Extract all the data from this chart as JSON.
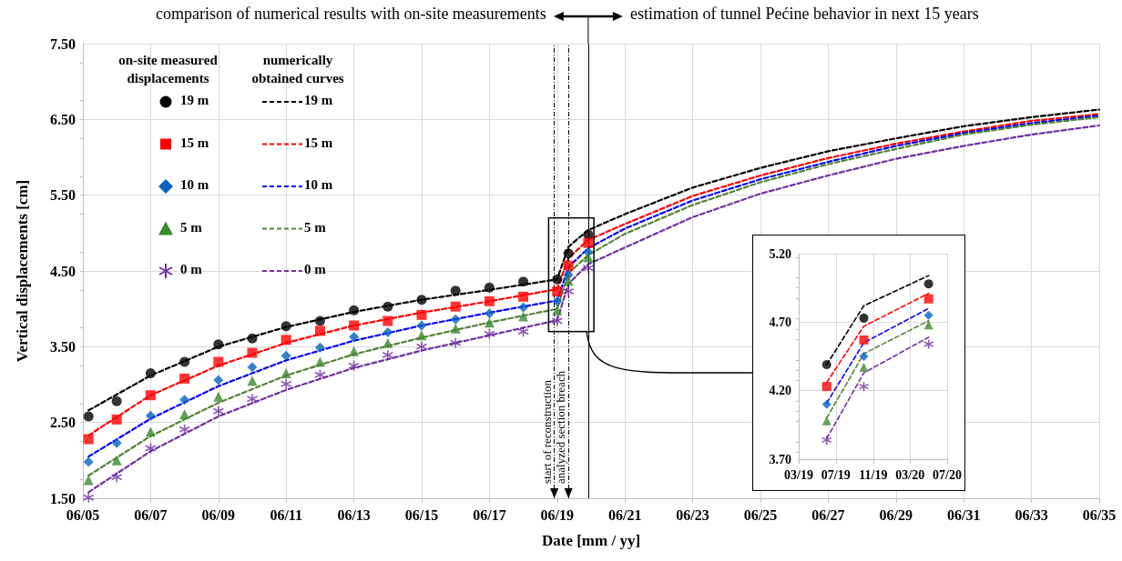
{
  "chart_data": [
    {
      "type": "line",
      "xlabel": "Date [mm / yy]",
      "ylabel": "Vertical displacements [cm]",
      "annotations": [
        "on-site measured displacements",
        "numerically obtained curves",
        "comparison of numerical results with on-site measurements",
        "estimation of tunnel Pećine behavior in next 15 years"
      ],
      "xlim": [
        "2005-06",
        "2035-06"
      ],
      "xticks": [
        {
          "value": "2005-06",
          "label": "06/05"
        },
        {
          "value": "2007-06",
          "label": "06/07"
        },
        {
          "value": "2009-06",
          "label": "06/09"
        },
        {
          "value": "2011-06",
          "label": "06/11"
        },
        {
          "value": "2013-06",
          "label": "06/13"
        },
        {
          "value": "2015-06",
          "label": "06/15"
        },
        {
          "value": "2017-06",
          "label": "06/17"
        },
        {
          "value": "2019-06",
          "label": "06/19"
        },
        {
          "value": "2021-06",
          "label": "06/21"
        },
        {
          "value": "2023-06",
          "label": "06/23"
        },
        {
          "value": "2025-06",
          "label": "06/25"
        },
        {
          "value": "2027-06",
          "label": "06/27"
        },
        {
          "value": "2029-06",
          "label": "06/29"
        },
        {
          "value": "2031-06",
          "label": "06/31"
        },
        {
          "value": "2033-06",
          "label": "06/33"
        },
        {
          "value": "2035-06",
          "label": "06/35"
        }
      ],
      "ylim": [
        1.5,
        7.5
      ],
      "yticks": [
        {
          "value": 1.5,
          "label": "1.50"
        },
        {
          "value": 2.5,
          "label": "2.50"
        },
        {
          "value": 3.5,
          "label": "3.50"
        },
        {
          "value": 4.5,
          "label": "4.50"
        },
        {
          "value": 5.5,
          "label": "5.50"
        },
        {
          "value": 6.5,
          "label": "6.50"
        },
        {
          "value": 7.5,
          "label": "7.50"
        }
      ],
      "grid": true,
      "legend": "top left",
      "ref_lines": [
        {
          "axis": "x",
          "value": "2019-05",
          "label": "start of reconstruction",
          "color": "#000000",
          "line_style": "dashed"
        },
        {
          "axis": "x",
          "value": "2019-10",
          "label": "analyzed section breach",
          "color": "#000000",
          "line_style": "dashed"
        },
        {
          "axis": "x",
          "value": "2020-05",
          "label": null,
          "color": "#000000",
          "line_style": "solid"
        }
      ],
      "series": [
        {
          "name": "19 m",
          "type": "scatter",
          "marker": "circle",
          "color": "#000000",
          "x": [
            "2005-08",
            "2006-06",
            "2007-06",
            "2008-06",
            "2009-06",
            "2010-06",
            "2011-06",
            "2012-06",
            "2013-06",
            "2014-06",
            "2015-06",
            "2016-06",
            "2017-06",
            "2018-06",
            "2019-06",
            "2019-10",
            "2020-05"
          ],
          "values": [
            2.58,
            2.78,
            3.15,
            3.3,
            3.53,
            3.61,
            3.77,
            3.84,
            3.98,
            4.03,
            4.12,
            4.24,
            4.28,
            4.36,
            4.39,
            4.73,
            4.98
          ]
        },
        {
          "name": "15 m",
          "type": "scatter",
          "marker": "square",
          "color": "#ff0000",
          "x": [
            "2005-08",
            "2006-06",
            "2007-06",
            "2008-06",
            "2009-06",
            "2010-06",
            "2011-06",
            "2012-06",
            "2013-06",
            "2014-06",
            "2015-06",
            "2016-06",
            "2017-06",
            "2018-06",
            "2019-06",
            "2019-10",
            "2020-05"
          ],
          "values": [
            2.28,
            2.54,
            2.86,
            3.08,
            3.3,
            3.42,
            3.59,
            3.71,
            3.78,
            3.84,
            3.92,
            4.03,
            4.1,
            4.16,
            4.23,
            4.57,
            4.87
          ]
        },
        {
          "name": "10 m",
          "type": "scatter",
          "marker": "diamond",
          "color": "#0563c1",
          "x": [
            "2005-08",
            "2006-06",
            "2007-06",
            "2008-06",
            "2009-06",
            "2010-06",
            "2011-06",
            "2012-06",
            "2013-06",
            "2014-06",
            "2015-06",
            "2016-06",
            "2017-06",
            "2018-06",
            "2019-06",
            "2019-10",
            "2020-05"
          ],
          "values": [
            1.98,
            2.23,
            2.59,
            2.8,
            3.06,
            3.23,
            3.38,
            3.49,
            3.63,
            3.69,
            3.78,
            3.86,
            3.94,
            4.02,
            4.1,
            4.45,
            4.75
          ]
        },
        {
          "name": "5 m",
          "type": "scatter",
          "marker": "triangle",
          "color": "#3a8a2e",
          "x": [
            "2005-08",
            "2006-06",
            "2007-06",
            "2008-06",
            "2009-06",
            "2010-06",
            "2011-06",
            "2012-06",
            "2013-06",
            "2014-06",
            "2015-06",
            "2016-06",
            "2017-06",
            "2018-06",
            "2019-06",
            "2019-10",
            "2020-05"
          ],
          "values": [
            1.74,
            2.0,
            2.38,
            2.61,
            2.84,
            3.05,
            3.15,
            3.3,
            3.44,
            3.55,
            3.65,
            3.74,
            3.82,
            3.9,
            3.98,
            4.37,
            4.68
          ]
        },
        {
          "name": "0 m",
          "type": "scatter",
          "marker": "cross",
          "color": "#7030a0",
          "x": [
            "2005-08",
            "2006-06",
            "2007-06",
            "2008-06",
            "2009-06",
            "2010-06",
            "2011-06",
            "2012-06",
            "2013-06",
            "2014-06",
            "2015-06",
            "2016-06",
            "2017-06",
            "2018-06",
            "2019-06",
            "2019-10",
            "2020-05"
          ],
          "values": [
            1.51,
            1.78,
            2.16,
            2.41,
            2.65,
            2.81,
            3.01,
            3.13,
            3.25,
            3.39,
            3.5,
            3.55,
            3.67,
            3.7,
            3.84,
            4.23,
            4.54
          ]
        },
        {
          "name": "19 m",
          "type": "line",
          "marker": "none",
          "line_style": "dashed",
          "color": "#000000",
          "x": [
            "2005-08",
            "2007-06",
            "2009-06",
            "2011-06",
            "2013-06",
            "2015-06",
            "2017-06",
            "2019-06",
            "2019-10",
            "2020-05",
            "2021-06",
            "2023-06",
            "2025-06",
            "2027-06",
            "2029-06",
            "2031-06",
            "2033-06",
            "2035-06"
          ],
          "values": [
            2.66,
            3.12,
            3.5,
            3.76,
            3.96,
            4.12,
            4.25,
            4.39,
            4.82,
            5.04,
            5.25,
            5.6,
            5.86,
            6.08,
            6.25,
            6.41,
            6.53,
            6.63
          ]
        },
        {
          "name": "15 m",
          "type": "line",
          "marker": "none",
          "line_style": "dashed",
          "color": "#ff0000",
          "x": [
            "2005-08",
            "2007-06",
            "2009-06",
            "2011-06",
            "2013-06",
            "2015-06",
            "2017-06",
            "2019-06",
            "2019-10",
            "2020-05",
            "2021-06",
            "2023-06",
            "2025-06",
            "2027-06",
            "2029-06",
            "2031-06",
            "2033-06",
            "2035-06"
          ],
          "values": [
            2.33,
            2.86,
            3.25,
            3.55,
            3.78,
            3.95,
            4.1,
            4.26,
            4.67,
            4.91,
            5.12,
            5.49,
            5.76,
            5.99,
            6.18,
            6.34,
            6.48,
            6.57
          ]
        },
        {
          "name": "10 m",
          "type": "line",
          "marker": "none",
          "line_style": "dashed",
          "color": "#0000ff",
          "x": [
            "2005-08",
            "2007-06",
            "2009-06",
            "2011-06",
            "2013-06",
            "2015-06",
            "2017-06",
            "2019-06",
            "2019-10",
            "2020-05",
            "2021-06",
            "2023-06",
            "2025-06",
            "2027-06",
            "2029-06",
            "2031-06",
            "2033-06",
            "2035-06"
          ],
          "values": [
            2.05,
            2.55,
            2.98,
            3.32,
            3.58,
            3.78,
            3.95,
            4.11,
            4.55,
            4.8,
            5.06,
            5.43,
            5.71,
            5.94,
            6.15,
            6.32,
            6.45,
            6.55
          ]
        },
        {
          "name": "5 m",
          "type": "line",
          "marker": "none",
          "line_style": "dashed",
          "color": "#548235",
          "x": [
            "2005-08",
            "2007-06",
            "2009-06",
            "2011-06",
            "2013-06",
            "2015-06",
            "2017-06",
            "2019-06",
            "2019-10",
            "2020-05",
            "2021-06",
            "2023-06",
            "2025-06",
            "2027-06",
            "2029-06",
            "2031-06",
            "2033-06",
            "2035-06"
          ],
          "values": [
            1.8,
            2.32,
            2.76,
            3.12,
            3.4,
            3.62,
            3.82,
            4.0,
            4.47,
            4.71,
            4.99,
            5.37,
            5.67,
            5.91,
            6.11,
            6.3,
            6.43,
            6.53
          ]
        },
        {
          "name": "0 m",
          "type": "line",
          "marker": "none",
          "line_style": "dashed",
          "color": "#7030a0",
          "x": [
            "2005-08",
            "2007-06",
            "2009-06",
            "2011-06",
            "2013-06",
            "2015-06",
            "2017-06",
            "2019-06",
            "2019-10",
            "2020-05",
            "2021-06",
            "2023-06",
            "2025-06",
            "2027-06",
            "2029-06",
            "2031-06",
            "2033-06",
            "2035-06"
          ],
          "values": [
            1.58,
            2.12,
            2.58,
            2.93,
            3.22,
            3.45,
            3.65,
            3.85,
            4.33,
            4.59,
            4.81,
            5.21,
            5.52,
            5.76,
            5.98,
            6.15,
            6.3,
            6.42
          ]
        }
      ]
    },
    {
      "type": "line",
      "xlim": [
        "2019-03",
        "2020-07"
      ],
      "xticks": [
        {
          "value": "2019-03",
          "label": "03/19"
        },
        {
          "value": "2019-07",
          "label": "07/19"
        },
        {
          "value": "2019-11",
          "label": "11/19"
        },
        {
          "value": "2020-03",
          "label": "03/20"
        },
        {
          "value": "2020-07",
          "label": "07/20"
        }
      ],
      "ylim": [
        3.7,
        5.2
      ],
      "yticks": [
        {
          "value": 3.7,
          "label": "3.70"
        },
        {
          "value": 4.2,
          "label": "4.20"
        },
        {
          "value": 4.7,
          "label": "4.70"
        },
        {
          "value": 5.2,
          "label": "5.20"
        }
      ],
      "grid": true,
      "series": [
        {
          "type": "scatter",
          "marker": "circle",
          "color": "#000000",
          "x": [
            "2019-06",
            "2019-10",
            "2020-05"
          ],
          "values": [
            4.39,
            4.73,
            4.98
          ]
        },
        {
          "type": "scatter",
          "marker": "square",
          "color": "#ff0000",
          "x": [
            "2019-06",
            "2019-10",
            "2020-05"
          ],
          "values": [
            4.23,
            4.57,
            4.87
          ]
        },
        {
          "type": "scatter",
          "marker": "diamond",
          "color": "#0563c1",
          "x": [
            "2019-06",
            "2019-10",
            "2020-05"
          ],
          "values": [
            4.1,
            4.45,
            4.75
          ]
        },
        {
          "type": "scatter",
          "marker": "triangle",
          "color": "#3a8a2e",
          "x": [
            "2019-06",
            "2019-10",
            "2020-05"
          ],
          "values": [
            3.98,
            4.37,
            4.68
          ]
        },
        {
          "type": "scatter",
          "marker": "cross",
          "color": "#7030a0",
          "x": [
            "2019-06",
            "2019-10",
            "2020-05"
          ],
          "values": [
            3.84,
            4.23,
            4.54
          ]
        },
        {
          "type": "line",
          "marker": "none",
          "line_style": "dashed",
          "color": "#000000",
          "x": [
            "2019-06",
            "2019-10",
            "2020-05"
          ],
          "values": [
            4.39,
            4.82,
            5.04
          ]
        },
        {
          "type": "line",
          "marker": "none",
          "line_style": "dashed",
          "color": "#ff0000",
          "x": [
            "2019-06",
            "2019-10",
            "2020-05"
          ],
          "values": [
            4.26,
            4.67,
            4.91
          ]
        },
        {
          "type": "line",
          "marker": "none",
          "line_style": "dashed",
          "color": "#0000ff",
          "x": [
            "2019-06",
            "2019-10",
            "2020-05"
          ],
          "values": [
            4.11,
            4.55,
            4.8
          ]
        },
        {
          "type": "line",
          "marker": "none",
          "line_style": "dashed",
          "color": "#548235",
          "x": [
            "2019-06",
            "2019-10",
            "2020-05"
          ],
          "values": [
            4.0,
            4.47,
            4.71
          ]
        },
        {
          "type": "line",
          "marker": "none",
          "line_style": "dashed",
          "color": "#7030a0",
          "x": [
            "2019-06",
            "2019-10",
            "2020-05"
          ],
          "values": [
            3.85,
            4.33,
            4.59
          ]
        }
      ]
    }
  ]
}
